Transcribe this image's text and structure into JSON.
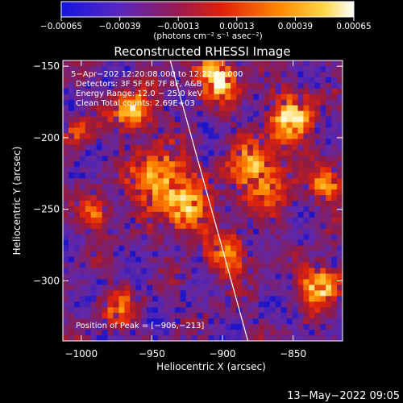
{
  "chart_data": {
    "type": "heatmap",
    "title": "Reconstructed RHESSI Image",
    "xlabel": "Heliocentric X (arcsec)",
    "ylabel": "Heliocentric Y (arcsec)",
    "xlim": [
      -1013,
      -815
    ],
    "ylim": [
      -342,
      -146
    ],
    "x_ticks": [
      -1000,
      -950,
      -900,
      -850
    ],
    "x_tick_labels": [
      "−1000",
      "−950",
      "−900",
      "−850"
    ],
    "y_ticks": [
      -150,
      -200,
      -250,
      -300
    ],
    "y_tick_labels": [
      "−150",
      "−200",
      "−250",
      "−300"
    ],
    "colorbar": {
      "min": -0.00065,
      "max": 0.00065,
      "ticks": [
        -0.00065,
        -0.00039,
        -0.00013,
        0.00013,
        0.00039,
        0.00065
      ],
      "tick_labels": [
        "−0.00065",
        "−0.00039",
        "−0.00013",
        "0.00013",
        "0.00039",
        "0.00065"
      ],
      "unit_label": "(photons cm⁻² s⁻¹ asec⁻²)",
      "colors": [
        "#1a10c8",
        "#7a20a8",
        "#c02020",
        "#ff5000",
        "#ffb000",
        "#ffffff"
      ]
    },
    "info_lines": [
      "5−Apr−202  12:20:08.000 to 12:22:20.000",
      "Detectors: 3F 5F 6F 7F 8F, A&B",
      "Energy Range: 12.0 − 25.0 keV",
      "Clean     Total counts: 2.69E+03"
    ],
    "peak_label": "Position of Peak = [−906,−213]",
    "limb_line": {
      "x": [
        -937,
        -882
      ],
      "y": [
        -146,
        -342
      ]
    },
    "grid": false
  },
  "footer": {
    "date": "13−May−2022 09:05"
  },
  "colors": {
    "background": "#000000",
    "text": "#ffffff"
  }
}
